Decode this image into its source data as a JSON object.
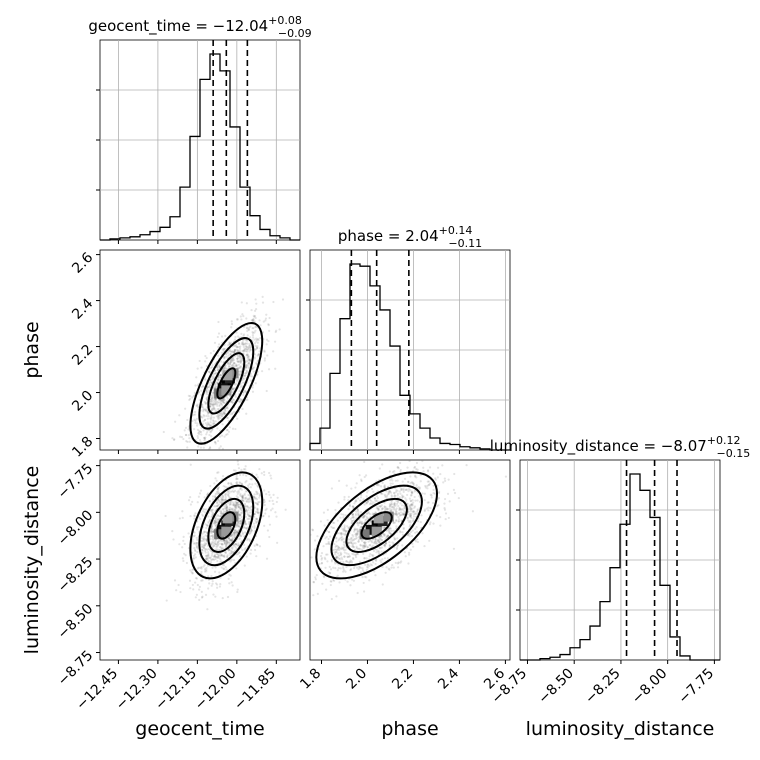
{
  "chart_data": {
    "type": "corner",
    "parameters": [
      {
        "key": "geocent_time",
        "label": "geocent_time",
        "median": "−12.04",
        "plus": "+0.08",
        "minus": "−0.09",
        "title_prefix": "geocent_time = ",
        "q16": -12.09,
        "q50": -12.04,
        "q84": -11.96,
        "range": [
          -12.52,
          -11.76
        ],
        "ticks": [
          -12.45,
          -12.3,
          -12.15,
          -12.0,
          -11.85
        ],
        "tick_labels": [
          "−12.45",
          "−12.30",
          "−12.15",
          "−12.00",
          "−11.85"
        ],
        "hist_counts": [
          0,
          1,
          2,
          3,
          5,
          8,
          12,
          22,
          50,
          98,
          152,
          176,
          160,
          107,
          50,
          23,
          10,
          4,
          2,
          0
        ]
      },
      {
        "key": "phase",
        "label": "phase",
        "median": "2.04",
        "plus": "+0.14",
        "minus": "−0.11",
        "title_prefix": "phase = ",
        "q16": 1.93,
        "q50": 2.04,
        "q84": 2.18,
        "range": [
          1.75,
          2.62
        ],
        "ticks": [
          1.8,
          2.0,
          2.2,
          2.4,
          2.6
        ],
        "tick_labels": [
          "1.8",
          "2.0",
          "2.2",
          "2.4",
          "2.6"
        ],
        "hist_counts": [
          6,
          20,
          70,
          120,
          170,
          168,
          150,
          128,
          95,
          50,
          33,
          20,
          11,
          6,
          5,
          3,
          2,
          1,
          0,
          0
        ]
      },
      {
        "key": "luminosity_distance",
        "label": "luminosity_distance",
        "median": "−8.07",
        "plus": "+0.12",
        "minus": "−0.15",
        "title_prefix": "luminosity_distance = ",
        "q16": -8.22,
        "q50": -8.07,
        "q84": -7.95,
        "range": [
          -8.79,
          -7.72
        ],
        "ticks": [
          -8.75,
          -8.5,
          -8.25,
          -8.0,
          -7.75
        ],
        "tick_labels": [
          "−8.75",
          "−8.50",
          "−8.25",
          "−8.00",
          "−7.75"
        ],
        "hist_counts": [
          0,
          0,
          1,
          2,
          4,
          9,
          15,
          25,
          43,
          68,
          100,
          137,
          125,
          105,
          55,
          17,
          3,
          0,
          0,
          0
        ]
      }
    ],
    "correlations": {
      "geocent_time|phase": 0.7,
      "geocent_time|luminosity_distance": 0.45,
      "phase|luminosity_distance": 0.6
    },
    "contour_sigmas": [
      0.5,
      1.0,
      1.5,
      2.0
    ],
    "grid": true
  }
}
